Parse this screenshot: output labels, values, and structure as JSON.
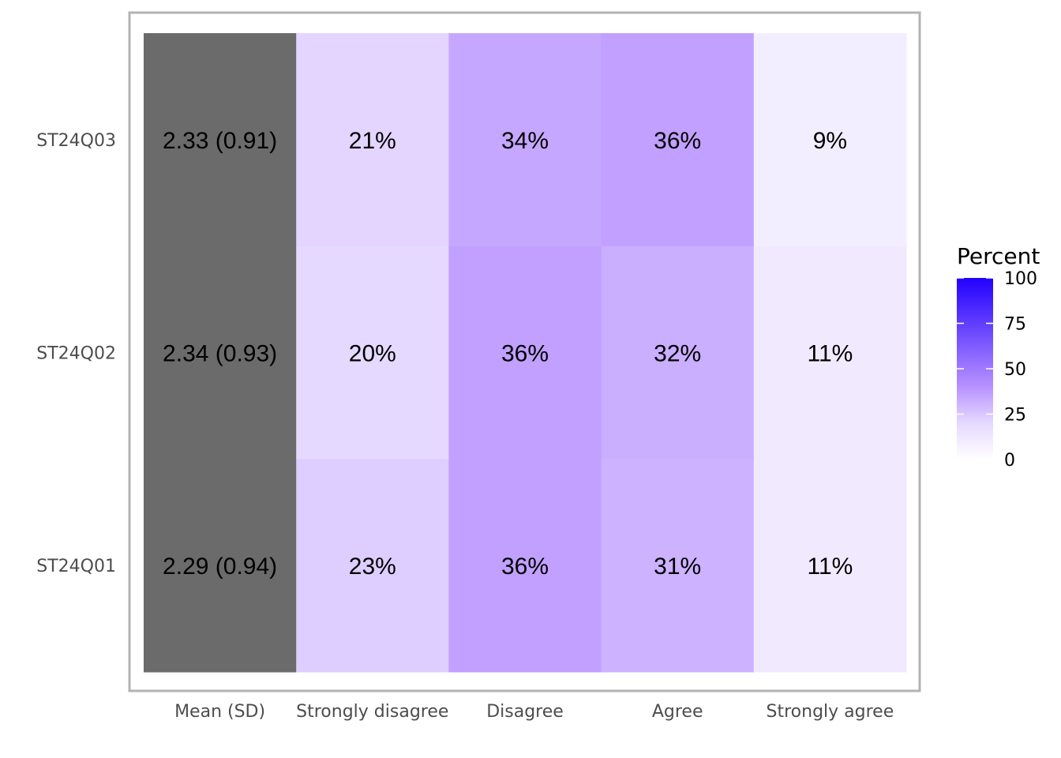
{
  "chart_data": {
    "type": "heatmap",
    "columns": [
      "Mean (SD)",
      "Strongly disagree",
      "Disagree",
      "Agree",
      "Strongly agree"
    ],
    "rows": [
      "ST24Q03",
      "ST24Q02",
      "ST24Q01"
    ],
    "mean_sd": [
      "2.33 (0.91)",
      "2.34 (0.93)",
      "2.29 (0.94)"
    ],
    "values": [
      [
        21,
        34,
        36,
        9
      ],
      [
        20,
        36,
        32,
        11
      ],
      [
        23,
        36,
        31,
        11
      ]
    ],
    "value_labels": [
      [
        "21%",
        "34%",
        "36%",
        "9%"
      ],
      [
        "20%",
        "36%",
        "32%",
        "11%"
      ],
      [
        "23%",
        "36%",
        "31%",
        "11%"
      ]
    ],
    "legend": {
      "title": "Percent",
      "ticks": [
        100,
        75,
        50,
        25,
        0
      ],
      "range": [
        0,
        100
      ],
      "low_color": "#ffffff",
      "high_color": "#2200ff"
    },
    "mean_column_color": "#6b6b6b",
    "panel_border_color": "#b3b3b3"
  }
}
